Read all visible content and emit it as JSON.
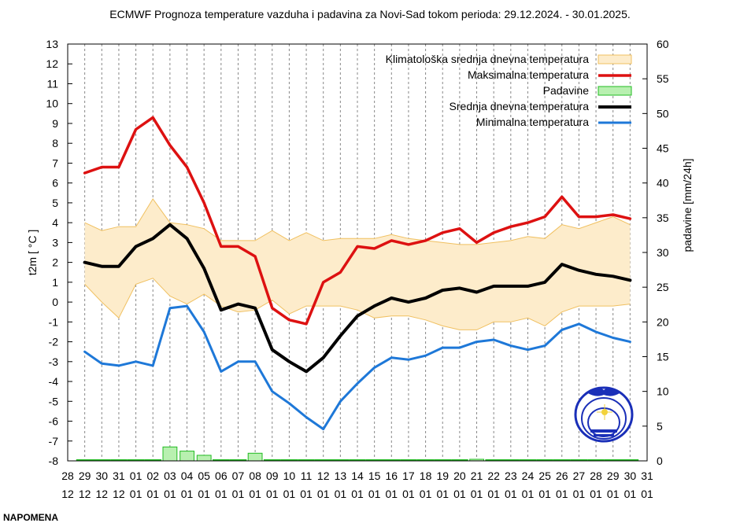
{
  "title": "ECMWF Prognoza temperature vazduha i padavina za Novi-Sad tokom perioda: 29.12.2024. - 30.01.2025.",
  "footer_text": "NAPOMENA",
  "chart_data": {
    "type": "line",
    "title": "ECMWF Prognoza temperature vazduha i padavina za Novi-Sad tokom perioda: 29.12.2024. - 30.01.2025.",
    "ylabel": "t2m [ °C ]",
    "y2label": "padavine [mm/24h]",
    "ylim": [
      -8,
      13
    ],
    "y2lim": [
      0,
      60
    ],
    "yticks": [
      -8,
      -7,
      -6,
      -5,
      -4,
      -3,
      -2,
      -1,
      0,
      1,
      2,
      3,
      4,
      5,
      6,
      7,
      8,
      9,
      10,
      11,
      12,
      13
    ],
    "y2ticks": [
      0,
      5,
      10,
      15,
      20,
      25,
      30,
      35,
      40,
      45,
      50,
      55,
      60
    ],
    "x_tick_days": [
      "28",
      "29",
      "30",
      "31",
      "01",
      "02",
      "03",
      "04",
      "05",
      "06",
      "07",
      "08",
      "09",
      "10",
      "11",
      "12",
      "13",
      "14",
      "15",
      "16",
      "17",
      "18",
      "19",
      "20",
      "21",
      "22",
      "23",
      "24",
      "25",
      "26",
      "27",
      "28",
      "29",
      "30",
      "31"
    ],
    "x_tick_months": [
      "12",
      "12",
      "12",
      "12",
      "01",
      "01",
      "01",
      "01",
      "01",
      "01",
      "01",
      "01",
      "01",
      "01",
      "01",
      "01",
      "01",
      "01",
      "01",
      "01",
      "01",
      "01",
      "01",
      "01",
      "01",
      "01",
      "01",
      "01",
      "01",
      "01",
      "01",
      "01",
      "01",
      "01",
      "01"
    ],
    "grid": "vertical dashed",
    "legend_position": "top-right",
    "x": [
      "29.12",
      "30.12",
      "31.12",
      "01.01",
      "02.01",
      "03.01",
      "04.01",
      "05.01",
      "06.01",
      "07.01",
      "08.01",
      "09.01",
      "10.01",
      "11.01",
      "12.01",
      "13.01",
      "14.01",
      "15.01",
      "16.01",
      "17.01",
      "18.01",
      "19.01",
      "20.01",
      "21.01",
      "22.01",
      "23.01",
      "24.01",
      "25.01",
      "26.01",
      "27.01",
      "28.01",
      "29.01",
      "30.01"
    ],
    "series": [
      {
        "name": "Klimatološka srednja dnevna temperatura",
        "kind": "band",
        "color": "#f0c060",
        "fill": "#fdeccb",
        "upper": [
          4.0,
          3.6,
          3.8,
          3.8,
          5.2,
          4.0,
          3.9,
          3.7,
          3.1,
          3.1,
          3.1,
          3.6,
          3.1,
          3.5,
          3.1,
          3.2,
          3.2,
          3.2,
          3.4,
          3.2,
          3.1,
          3.0,
          2.9,
          2.9,
          3.0,
          3.1,
          3.3,
          3.2,
          3.9,
          3.7,
          4.0,
          4.3,
          3.9
        ],
        "lower": [
          0.9,
          0.0,
          -0.8,
          0.9,
          1.2,
          0.3,
          -0.1,
          0.4,
          -0.2,
          -0.5,
          -0.4,
          0.1,
          -0.6,
          -0.2,
          -0.2,
          -0.2,
          -0.4,
          -0.8,
          -0.7,
          -0.7,
          -0.9,
          -1.2,
          -1.4,
          -1.4,
          -1.0,
          -1.0,
          -0.8,
          -1.2,
          -0.5,
          -0.2,
          -0.2,
          -0.2,
          -0.1
        ]
      },
      {
        "name": "Maksimalna temperatura",
        "kind": "line",
        "color": "#dd1111",
        "values": [
          6.5,
          6.8,
          6.8,
          8.7,
          9.3,
          7.9,
          6.8,
          5.0,
          2.8,
          2.8,
          2.3,
          -0.3,
          -0.9,
          -1.1,
          1.0,
          1.5,
          2.8,
          2.7,
          3.1,
          2.9,
          3.1,
          3.5,
          3.7,
          3.0,
          3.5,
          3.8,
          4.0,
          4.3,
          5.3,
          4.3,
          4.3,
          4.4,
          4.2
        ]
      },
      {
        "name": "Padavine",
        "kind": "bar",
        "axis": "y2",
        "color": "#22bb22",
        "fill": "#b8f0b0",
        "values": [
          0,
          0,
          0,
          0,
          0,
          2.0,
          1.4,
          0.8,
          0,
          0,
          1.1,
          0,
          0,
          0,
          0,
          0,
          0,
          0,
          0,
          0,
          0,
          0,
          0,
          0.2,
          0,
          0,
          0,
          0,
          0,
          0,
          0,
          0,
          0
        ]
      },
      {
        "name": "Srednja dnevna temperatura",
        "kind": "line",
        "color": "#000000",
        "values": [
          2.0,
          1.8,
          1.8,
          2.8,
          3.2,
          3.9,
          3.2,
          1.7,
          -0.4,
          -0.1,
          -0.3,
          -2.4,
          -3.0,
          -3.5,
          -2.8,
          -1.7,
          -0.7,
          -0.2,
          0.2,
          0.0,
          0.2,
          0.6,
          0.7,
          0.5,
          0.8,
          0.8,
          0.8,
          1.0,
          1.9,
          1.6,
          1.4,
          1.3,
          1.1
        ]
      },
      {
        "name": "Minimalna temperatura",
        "kind": "line",
        "color": "#1e78d8",
        "values": [
          -2.5,
          -3.1,
          -3.2,
          -3.0,
          -3.2,
          -0.3,
          -0.2,
          -1.5,
          -3.5,
          -3.0,
          -3.0,
          -4.5,
          -5.1,
          -5.8,
          -6.4,
          -5.0,
          -4.1,
          -3.3,
          -2.8,
          -2.9,
          -2.7,
          -2.3,
          -2.3,
          -2.0,
          -1.9,
          -2.2,
          -2.4,
          -2.2,
          -1.4,
          -1.1,
          -1.5,
          -1.8,
          -2.0
        ]
      }
    ]
  }
}
